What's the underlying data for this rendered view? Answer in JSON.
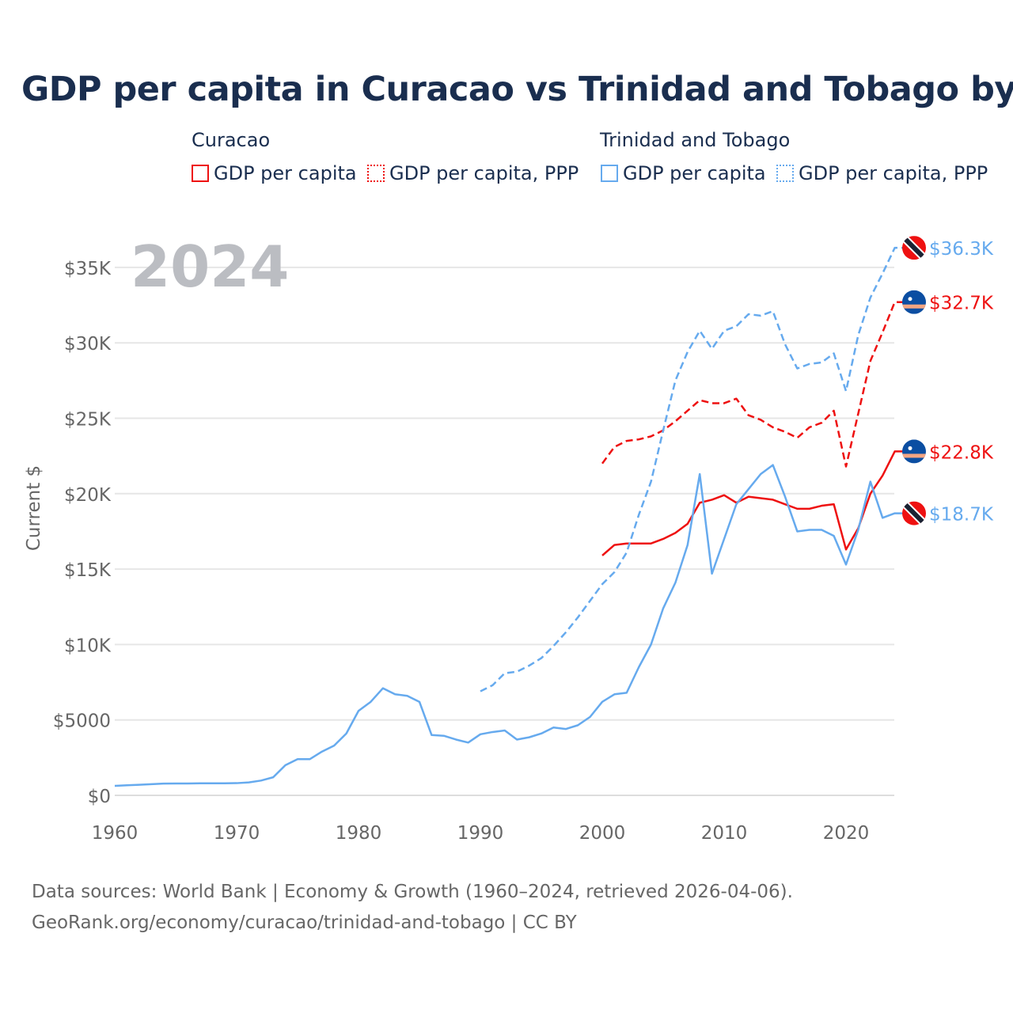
{
  "title": "GDP per capita in Curacao vs Trinidad and Tobago by year",
  "legend": {
    "groups": [
      {
        "name": "Curacao",
        "items": [
          "GDP per capita",
          "GDP per capita, PPP"
        ]
      },
      {
        "name": "Trinidad and Tobago",
        "items": [
          "GDP per capita",
          "GDP per capita, PPP"
        ]
      }
    ]
  },
  "year_label": "2024",
  "footer": {
    "line1": "Data sources: World Bank | Economy & Growth (1960–2024, retrieved 2026-04-06).",
    "line2": "GeoRank.org/economy/curacao/trinidad-and-tobago | CC BY"
  },
  "colors": {
    "curacao": "#ee1111",
    "tt": "#66aaee"
  },
  "chart_data": {
    "type": "line",
    "title": "GDP per capita in Curacao vs Trinidad and Tobago by year",
    "ylabel": "Current $",
    "xlabel": "",
    "xlim": [
      1960,
      2024
    ],
    "ylim": [
      0,
      36300
    ],
    "xticks": [
      1960,
      1970,
      1980,
      1990,
      2000,
      2010,
      2020
    ],
    "xtick_labels": [
      "1960",
      "1970",
      "1980",
      "1990",
      "2000",
      "2010",
      "2020"
    ],
    "yticks": [
      0,
      5000,
      10000,
      15000,
      20000,
      25000,
      30000,
      35000
    ],
    "ytick_labels": [
      "$0",
      "$5000",
      "$10K",
      "$15K",
      "$20K",
      "$25K",
      "$30K",
      "$35K"
    ],
    "grid": true,
    "series": [
      {
        "name": "Curacao GDP per capita",
        "country": "curacao",
        "dashed": false,
        "start": 2000,
        "end_label": "$22.8K",
        "values": [
          15900,
          16600,
          16700,
          16700,
          16700,
          17000,
          17400,
          18000,
          19400,
          19600,
          19900,
          19400,
          19800,
          19700,
          19600,
          19300,
          19000,
          19000,
          19200,
          19300,
          16300,
          17700,
          20000,
          21200,
          22800
        ]
      },
      {
        "name": "Curacao GDP per capita, PPP",
        "country": "curacao",
        "dashed": true,
        "start": 2000,
        "end_label": "$32.7K",
        "values": [
          22000,
          23100,
          23500,
          23600,
          23800,
          24200,
          24800,
          25500,
          26200,
          26000,
          26000,
          26300,
          25200,
          24900,
          24400,
          24100,
          23700,
          24400,
          24700,
          25500,
          21800,
          25300,
          28800,
          30700,
          32700
        ]
      },
      {
        "name": "Trinidad and Tobago GDP per capita",
        "country": "tt",
        "dashed": false,
        "start": 1960,
        "end_label": "$18.7K",
        "values": [
          630,
          670,
          700,
          740,
          780,
          790,
          790,
          800,
          800,
          800,
          810,
          860,
          980,
          1200,
          2000,
          2400,
          2400,
          2900,
          3300,
          4100,
          5600,
          6200,
          7100,
          6700,
          6600,
          6200,
          4000,
          3950,
          3700,
          3500,
          4050,
          4200,
          4300,
          3700,
          3850,
          4100,
          4500,
          4400,
          4650,
          5200,
          6200,
          6700,
          6800,
          8500,
          10000,
          12400,
          14100,
          16600,
          21300,
          14700,
          17000,
          19300,
          20300,
          21300,
          21900,
          19800,
          17500,
          17600,
          17600,
          17200,
          15300,
          17600,
          20800,
          18400,
          18700
        ]
      },
      {
        "name": "Trinidad and Tobago GDP per capita, PPP",
        "country": "tt",
        "dashed": true,
        "start": 1990,
        "end_label": "$36.3K",
        "values": [
          6900,
          7300,
          8100,
          8200,
          8600,
          9100,
          9900,
          10800,
          11800,
          12900,
          14000,
          14800,
          16100,
          18600,
          20800,
          24200,
          27500,
          29400,
          30800,
          29600,
          30800,
          31100,
          31900,
          31800,
          32100,
          29900,
          28300,
          28600,
          28700,
          29300,
          26800,
          30500,
          33000,
          34600,
          36300
        ]
      }
    ]
  }
}
